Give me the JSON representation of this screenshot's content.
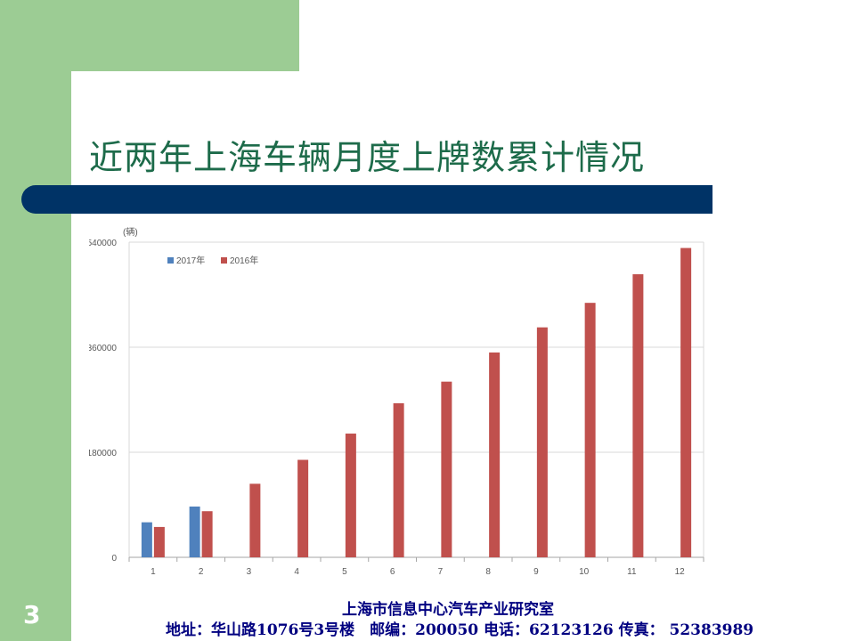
{
  "slide": {
    "title": "近两年上海车辆月度上牌数累计情况",
    "number": "3",
    "footer_line1": "上海市信息中心汽车产业研究室",
    "footer_line2": "地址：华山路1076号3号楼　邮编：200050 电话：62123126 传真： 52383989"
  },
  "colors": {
    "series_2017": "#4f81bd",
    "series_2016": "#c0504d",
    "side_green": "#9ccc94",
    "navy_bar": "#003366"
  },
  "chart_data": {
    "type": "bar",
    "unit_label": "(辆)",
    "categories": [
      "1",
      "2",
      "3",
      "4",
      "5",
      "6",
      "7",
      "8",
      "9",
      "10",
      "11",
      "12"
    ],
    "series": [
      {
        "name": "2017年",
        "color": "#4f81bd",
        "values": [
          60000,
          87000,
          null,
          null,
          null,
          null,
          null,
          null,
          null,
          null,
          null,
          null
        ]
      },
      {
        "name": "2016年",
        "color": "#c0504d",
        "values": [
          52000,
          79000,
          126000,
          167000,
          212000,
          264000,
          301000,
          351000,
          394000,
          436000,
          485000,
          530000
        ]
      }
    ],
    "ylim": [
      0,
      540000
    ],
    "yticks": [
      "0",
      "180000",
      "360000",
      "540000"
    ],
    "grid": true,
    "legend_position": "top-left"
  }
}
